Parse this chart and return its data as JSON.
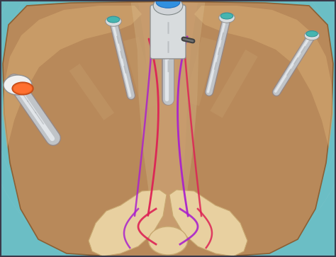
{
  "fig_width": 4.74,
  "fig_height": 3.63,
  "dpi": 100,
  "bg_color": "#6bbec5",
  "pelvis_main": "#b8895a",
  "pelvis_light": "#d4a870",
  "pelvis_edge": "#8a6035",
  "bone_light": "#e8d0a0",
  "teal_bg": "#7ac4ca",
  "shadow_color": "#c4956a",
  "trocar_metal": "#c8ccd0",
  "trocar_bright": "#e8eaec",
  "trocar_teal_cap": "#40b8b0",
  "trocar_blue_cap": "#3090e0",
  "center_trocar_body": "#d0d4d8",
  "left_trocar_white": "#f0f0f0",
  "left_trocar_orange": "#e06020",
  "ureteral_red": "#dd2255",
  "ureteral_purple": "#aa22cc",
  "transparent_overlay": "#e0c898",
  "trocar_shadow": "#8090a0"
}
